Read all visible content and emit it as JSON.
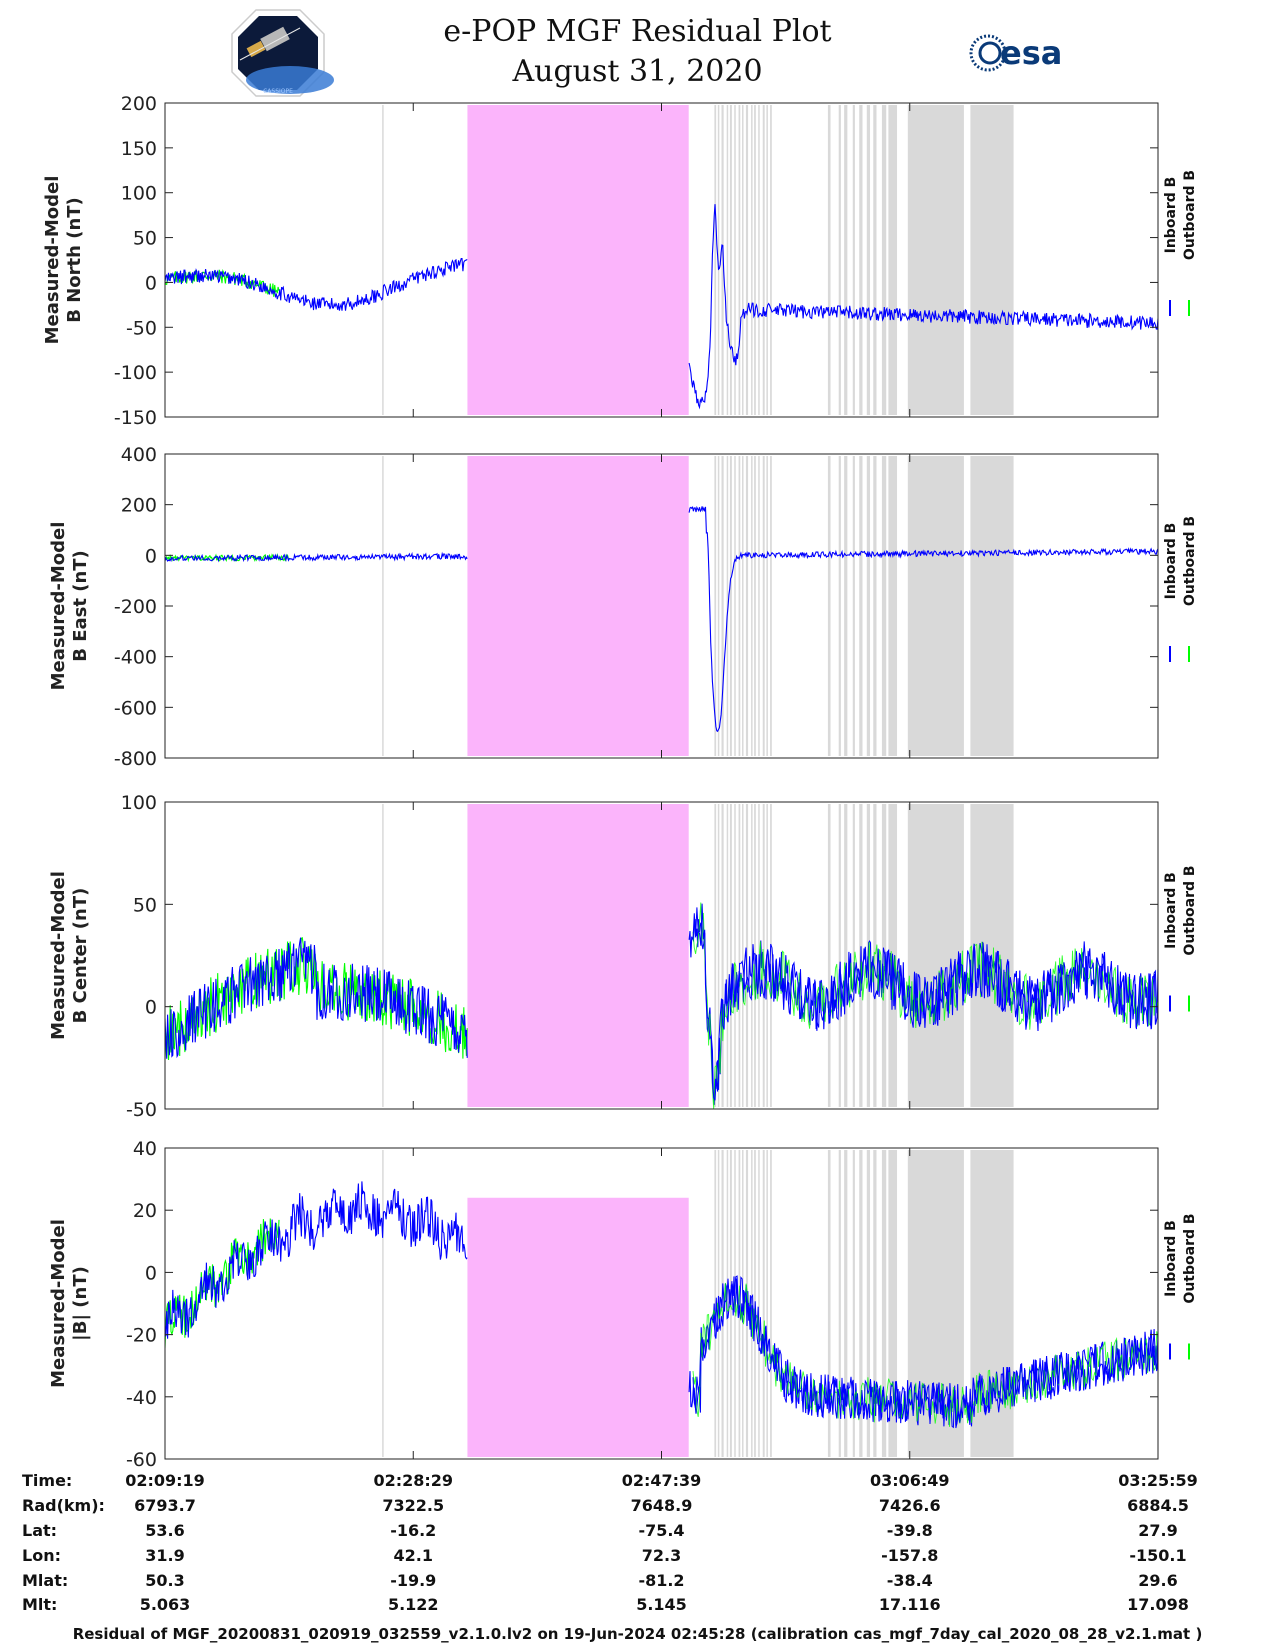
{
  "title": "e-POP MGF Residual Plot",
  "subtitle": "August 31, 2020",
  "logos": {
    "left": "CASSIOPE",
    "right": "esa"
  },
  "colors": {
    "inboard": "#0000ff",
    "outboard": "#00ff00",
    "mask": "#fbb4fb",
    "flag": "#d9d9d9",
    "axis": "#222222"
  },
  "legend": [
    "Inboard B",
    "Outboard B"
  ],
  "chart_data": [
    {
      "type": "line",
      "ylabel": [
        "Measured-Model",
        "B North (nT)"
      ],
      "ylim": [
        -150,
        200
      ],
      "yticks": [
        "200",
        "150",
        "100",
        "50",
        "0",
        "-50",
        "-100",
        "-150"
      ],
      "tickvals": [
        200,
        150,
        100,
        50,
        0,
        -50,
        -100,
        -150
      ],
      "series": [
        {
          "name": "Inboard B",
          "key": "bn"
        },
        {
          "name": "Outboard B",
          "key": "bn"
        }
      ]
    },
    {
      "type": "line",
      "ylabel": [
        "Measured-Model",
        "B East (nT)"
      ],
      "ylim": [
        -800,
        400
      ],
      "yticks": [
        "400",
        "200",
        "0",
        "-200",
        "-400",
        "-600",
        "-800"
      ],
      "tickvals": [
        400,
        200,
        0,
        -200,
        -400,
        -600,
        -800
      ],
      "series": [
        {
          "name": "Inboard B",
          "key": "be"
        },
        {
          "name": "Outboard B",
          "key": "be"
        }
      ]
    },
    {
      "type": "line",
      "ylabel": [
        "Measured-Model",
        "B Center (nT)"
      ],
      "ylim": [
        -50,
        100
      ],
      "yticks": [
        "100",
        "50",
        "0",
        "-50"
      ],
      "tickvals": [
        100,
        50,
        0,
        -50
      ],
      "series": [
        {
          "name": "Inboard B",
          "key": "bc"
        },
        {
          "name": "Outboard B",
          "key": "bc"
        }
      ]
    },
    {
      "type": "line",
      "ylabel": [
        "Measured-Model",
        "|B| (nT)"
      ],
      "ylim": [
        -60,
        40
      ],
      "yticks": [
        "40",
        "20",
        "0",
        "-20",
        "-40",
        "-60"
      ],
      "tickvals": [
        40,
        20,
        0,
        -20,
        -40,
        -60
      ],
      "series": [
        {
          "name": "Inboard B",
          "key": "bm"
        },
        {
          "name": "Outboard B",
          "key": "bm"
        }
      ]
    }
  ],
  "x_axis": {
    "start_seconds": 7759,
    "end_seconds": 12359,
    "gap_seconds": [
      9160,
      10185
    ],
    "green_end_seconds": {
      "bn": 8290,
      "be": 8340,
      "bc": 9160,
      "bm": 8290
    }
  },
  "info": {
    "labels": [
      "Time:",
      "Rad(km):",
      "Lat:",
      "Lon:",
      "Mlat:",
      "Mlt:"
    ],
    "columns": [
      [
        "02:09:19",
        "6793.7",
        "53.6",
        "31.9",
        "50.3",
        "5.063"
      ],
      [
        "02:28:29",
        "7322.5",
        "-16.2",
        "42.1",
        "-19.9",
        "5.122"
      ],
      [
        "02:47:39",
        "7648.9",
        "-75.4",
        "72.3",
        "-81.2",
        "5.145"
      ],
      [
        "03:06:49",
        "7426.6",
        "-39.8",
        "-157.8",
        "-38.4",
        "17.116"
      ],
      [
        "03:25:59",
        "6884.5",
        "27.9",
        "-150.1",
        "29.6",
        "17.098"
      ]
    ]
  },
  "footer": "Residual of MGF_20200831_020919_032559_v2.1.0.lv2 on 19-Jun-2024 02:45:28 (calibration cas_mgf_7day_cal_2020_08_28_v2.1.mat )"
}
